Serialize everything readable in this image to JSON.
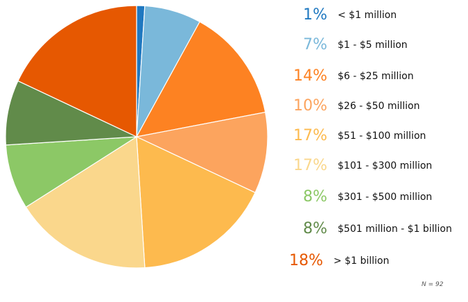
{
  "chart_data": {
    "type": "pie",
    "title": "",
    "categories": [
      "< $1 million",
      "$1 - $5 million",
      "$6 - $25 million",
      "$26 - $50 million",
      "$51 - $100 million",
      "$101 - $300 million",
      "$301 - $500 million",
      "$501 million - $1 billion",
      "> $1 billion"
    ],
    "values": [
      1,
      7,
      14,
      10,
      17,
      17,
      8,
      8,
      18
    ],
    "value_labels": [
      "1%",
      "7%",
      "14%",
      "10%",
      "17%",
      "17%",
      "8%",
      "8%",
      "18%"
    ],
    "colors": [
      "#1f78c0",
      "#7ab8da",
      "#fd8222",
      "#fca45e",
      "#fdba4e",
      "#fad78c",
      "#8cc866",
      "#618b4a",
      "#e65801"
    ],
    "legend_position": "right",
    "footnote": "N = 92"
  }
}
